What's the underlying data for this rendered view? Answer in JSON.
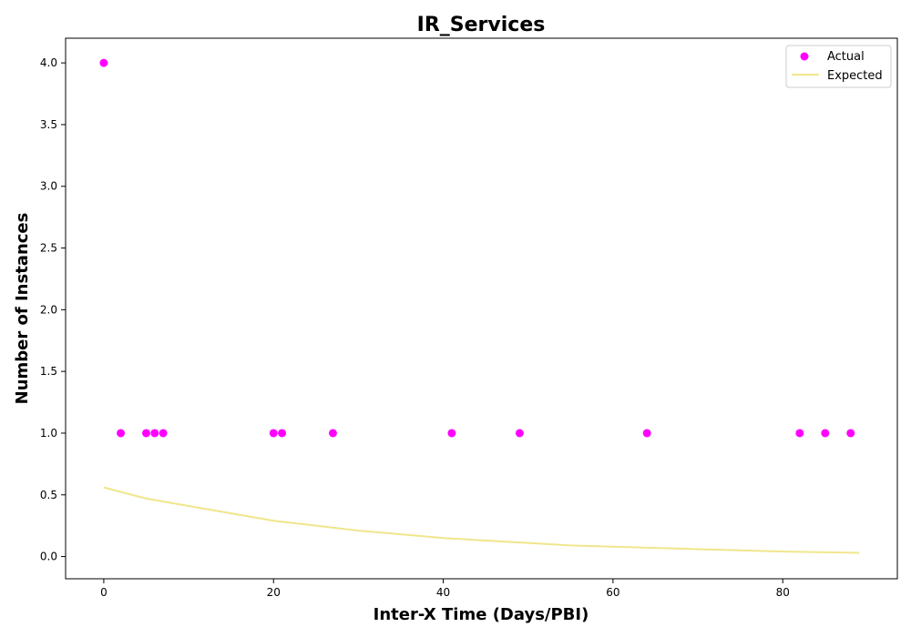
{
  "chart_data": {
    "type": "scatter",
    "title": "IR_Services",
    "xlabel": "Inter-X Time (Days/PBI)",
    "ylabel": "Number of Instances",
    "xlim": [
      -4.5,
      93.5
    ],
    "ylim": [
      -0.18,
      4.2
    ],
    "x_ticks": [
      0,
      20,
      40,
      60,
      80
    ],
    "y_ticks": [
      0.0,
      0.5,
      1.0,
      1.5,
      2.0,
      2.5,
      3.0,
      3.5,
      4.0
    ],
    "x_tick_labels": [
      "0",
      "20",
      "40",
      "60",
      "80"
    ],
    "y_tick_labels": [
      "0.0",
      "0.5",
      "1.0",
      "1.5",
      "2.0",
      "2.5",
      "3.0",
      "3.5",
      "4.0"
    ],
    "grid": false,
    "legend_position": "top-right",
    "series": [
      {
        "name": "Actual",
        "kind": "scatter",
        "color": "#ff00ff",
        "points": [
          {
            "x": 0,
            "y": 4
          },
          {
            "x": 2,
            "y": 1
          },
          {
            "x": 5,
            "y": 1
          },
          {
            "x": 6,
            "y": 1
          },
          {
            "x": 7,
            "y": 1
          },
          {
            "x": 20,
            "y": 1
          },
          {
            "x": 21,
            "y": 1
          },
          {
            "x": 27,
            "y": 1
          },
          {
            "x": 41,
            "y": 1
          },
          {
            "x": 49,
            "y": 1
          },
          {
            "x": 64,
            "y": 1
          },
          {
            "x": 82,
            "y": 1
          },
          {
            "x": 85,
            "y": 1
          },
          {
            "x": 88,
            "y": 1
          }
        ]
      },
      {
        "name": "Expected",
        "kind": "line",
        "color": "#f0e68c",
        "points": [
          {
            "x": 0,
            "y": 0.56
          },
          {
            "x": 5,
            "y": 0.47
          },
          {
            "x": 10,
            "y": 0.41
          },
          {
            "x": 15,
            "y": 0.35
          },
          {
            "x": 20,
            "y": 0.29
          },
          {
            "x": 25,
            "y": 0.25
          },
          {
            "x": 30,
            "y": 0.21
          },
          {
            "x": 35,
            "y": 0.18
          },
          {
            "x": 40,
            "y": 0.15
          },
          {
            "x": 45,
            "y": 0.13
          },
          {
            "x": 50,
            "y": 0.11
          },
          {
            "x": 55,
            "y": 0.09
          },
          {
            "x": 60,
            "y": 0.08
          },
          {
            "x": 65,
            "y": 0.07
          },
          {
            "x": 70,
            "y": 0.06
          },
          {
            "x": 75,
            "y": 0.05
          },
          {
            "x": 80,
            "y": 0.04
          },
          {
            "x": 85,
            "y": 0.035
          },
          {
            "x": 89,
            "y": 0.03
          }
        ]
      }
    ]
  }
}
